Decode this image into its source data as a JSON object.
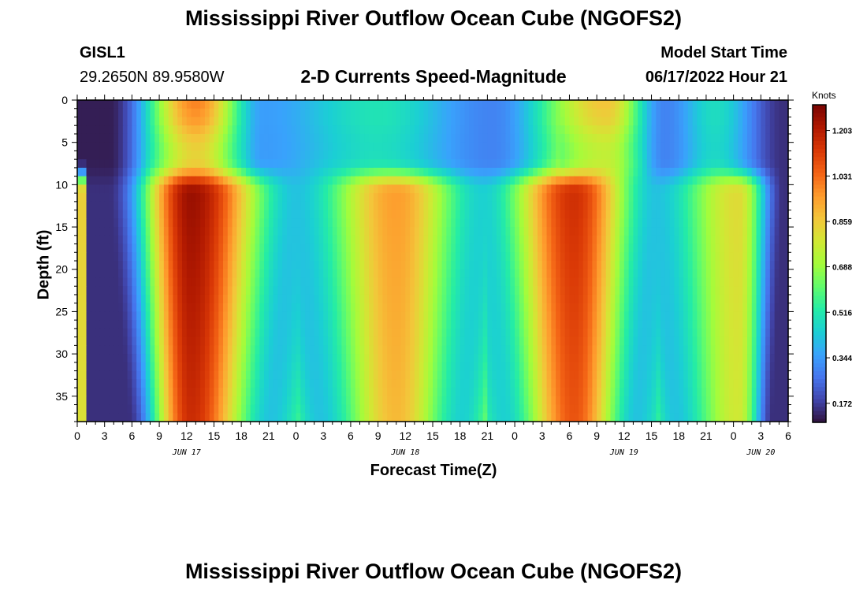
{
  "header": {
    "title": "Mississippi River Outflow Ocean Cube (NGOFS2)",
    "station_id": "GISL1",
    "station_coords": "29.2650N  89.9580W",
    "plot_subtitle": "2-D Currents Speed-Magnitude",
    "model_start_label": "Model Start Time",
    "model_start_value": "06/17/2022 Hour 21"
  },
  "footer_title": "Mississippi River Outflow Ocean Cube (NGOFS2)",
  "chart_data": {
    "type": "heatmap",
    "title": "2-D Currents Speed-Magnitude",
    "xlabel": "Forecast Time(Z)",
    "ylabel": "Depth (ft)",
    "x_range_hours": [
      0,
      78
    ],
    "x_ticks": [
      "0",
      "3",
      "6",
      "9",
      "12",
      "15",
      "18",
      "21",
      "0",
      "3",
      "6",
      "9",
      "12",
      "15",
      "18",
      "21",
      "0",
      "3",
      "6",
      "9",
      "12",
      "15",
      "18",
      "21",
      "0",
      "3",
      "6"
    ],
    "date_labels": [
      {
        "label": "JUN 17",
        "hour": 12
      },
      {
        "label": "JUN 18",
        "hour": 36
      },
      {
        "label": "JUN 19",
        "hour": 60
      },
      {
        "label": "JUN 20",
        "hour": 75
      }
    ],
    "y_range_ft": [
      0,
      38
    ],
    "y_ticks": [
      0,
      5,
      10,
      15,
      20,
      25,
      30,
      35
    ],
    "y_inverted": true,
    "colorbar": {
      "unit": "Knots",
      "min": 0.1,
      "max": 1.3,
      "ticks": [
        "0.172",
        "0.344",
        "0.516",
        "0.688",
        "0.859",
        "1.031",
        "1.203"
      ],
      "tick_values": [
        0.172,
        0.344,
        0.516,
        0.688,
        0.859,
        1.031,
        1.203
      ]
    },
    "colormap": [
      "#30123b",
      "#4145ab",
      "#4675ed",
      "#39a2fc",
      "#1bcfd4",
      "#24eca6",
      "#61fc6c",
      "#a4fc3b",
      "#d1e834",
      "#f3c63a",
      "#fe9b2d",
      "#f36315",
      "#d93806",
      "#b11901",
      "#7a0402"
    ],
    "surface_layer_peaks": [
      {
        "hour": 13.0,
        "value": 1.0
      },
      {
        "hour": 58.0,
        "value": 0.88
      },
      {
        "hour": 33.0,
        "value": 0.5
      },
      {
        "hour": 70.0,
        "value": 0.48
      }
    ],
    "surface_layer_lows": [
      {
        "hour": 3.5,
        "value": 0.12
      },
      {
        "hour": 20.5,
        "value": 0.35
      },
      {
        "hour": 45.5,
        "value": 0.3
      },
      {
        "hour": 64.5,
        "value": 0.3
      },
      {
        "hour": 77.5,
        "value": 0.15
      }
    ],
    "lower_layer_peaks": [
      {
        "hour": 12.5,
        "value": 1.25
      },
      {
        "hour": 35.0,
        "value": 0.95
      },
      {
        "hour": 54.5,
        "value": 1.15
      },
      {
        "hour": 72.5,
        "value": 0.82
      }
    ],
    "lower_layer_lows": [
      {
        "hour": 3.5,
        "value": 0.15
      },
      {
        "hour": 24.0,
        "value": 0.42
      },
      {
        "hour": 44.5,
        "value": 0.45
      },
      {
        "hour": 63.5,
        "value": 0.42
      },
      {
        "hour": 77.5,
        "value": 0.15
      }
    ],
    "left_edge_lower_value": 0.85,
    "grid": false
  }
}
